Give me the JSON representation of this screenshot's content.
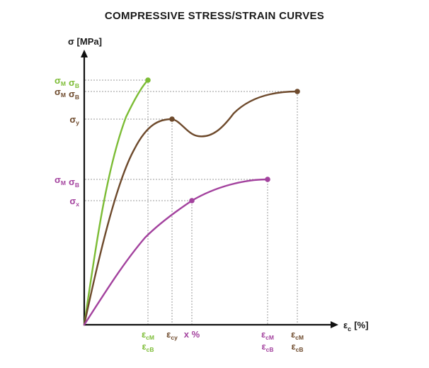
{
  "title": "COMPRESSIVE STRESS/STRAIN CURVES",
  "y_axis": {
    "symbol": "σ",
    "unit": "[MPa]"
  },
  "x_axis": {
    "symbol": "ε",
    "subscript": "c",
    "unit": "[%]"
  },
  "colors": {
    "green": "#7cbc35",
    "brown": "#6e4a2c",
    "magenta": "#a3429e",
    "axis": "#111111",
    "guide": "#9a9a9a"
  },
  "y_ticks": {
    "green_top": {
      "color": "green",
      "parts": [
        [
          "σ",
          "M"
        ],
        [
          "σ",
          "B"
        ]
      ]
    },
    "brown_top": {
      "color": "brown",
      "parts": [
        [
          "σ",
          "M"
        ],
        [
          "σ",
          "B"
        ]
      ]
    },
    "brown_yield": {
      "color": "brown",
      "parts": [
        [
          "σ",
          "y"
        ]
      ]
    },
    "magenta_top": {
      "color": "magenta",
      "parts": [
        [
          "σ",
          "M"
        ],
        [
          "σ",
          "B"
        ]
      ]
    },
    "magenta_x": {
      "color": "magenta",
      "parts": [
        [
          "σ",
          "x"
        ]
      ]
    }
  },
  "x_ticks": {
    "green_end": {
      "color": "green",
      "lines": [
        [
          "ε",
          "cM"
        ],
        [
          "ε",
          "cB"
        ]
      ]
    },
    "brown_yield": {
      "color": "brown",
      "lines": [
        [
          "ε",
          "cy"
        ]
      ]
    },
    "magenta_x": {
      "color": "magenta",
      "lines": [
        [
          "x %",
          ""
        ]
      ]
    },
    "magenta_end": {
      "color": "magenta",
      "lines": [
        [
          "ε",
          "cM"
        ],
        [
          "ε",
          "cB"
        ]
      ]
    },
    "brown_end": {
      "color": "brown",
      "lines": [
        [
          "ε",
          "cM"
        ],
        [
          "ε",
          "cB"
        ]
      ]
    }
  }
}
